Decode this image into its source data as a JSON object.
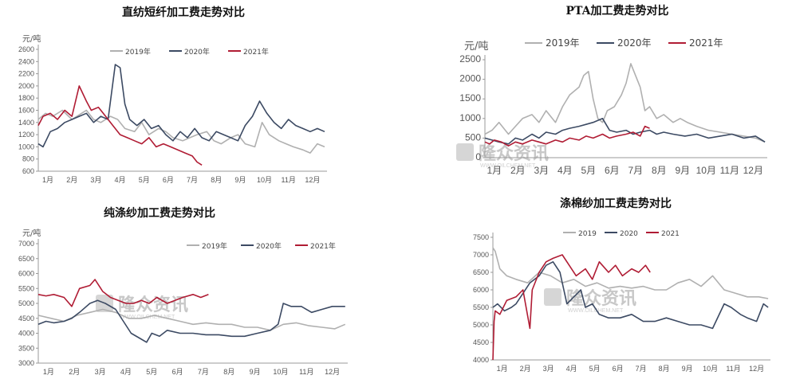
{
  "watermark": {
    "text": "隆众资讯",
    "sub": "WWW.OILCHEM.NET"
  },
  "chart_data": [
    {
      "id": "c1",
      "type": "line",
      "title": "直纺短纤加工费走势对比",
      "ylabel": "元/吨",
      "ylim": [
        600,
        2600
      ],
      "yticks": [
        "600",
        "800",
        "1000",
        "1200",
        "1400",
        "1600",
        "1800",
        "2000",
        "2200",
        "2400",
        "2600"
      ],
      "xticks": [
        "1月",
        "2月",
        "3月",
        "4月",
        "5月",
        "6月",
        "7月",
        "8月",
        "9月",
        "10月",
        "11月",
        "12月"
      ],
      "legend_position": "top",
      "series": [
        {
          "name": "2019年",
          "color": "#b0b0b0",
          "x": [
            1,
            1.3,
            1.6,
            2,
            2.4,
            2.8,
            3,
            3.3,
            3.6,
            4,
            4.3,
            4.6,
            5,
            5.3,
            5.6,
            6,
            6.3,
            6.6,
            7,
            7.3,
            7.6,
            8,
            8.3,
            8.6,
            9,
            9.3,
            9.6,
            10,
            10.3,
            10.6,
            11,
            11.3,
            11.6,
            12,
            12.3,
            12.6,
            12.9
          ],
          "y": [
            1450,
            1550,
            1500,
            1600,
            1450,
            1550,
            1600,
            1450,
            1400,
            1500,
            1450,
            1300,
            1250,
            1400,
            1200,
            1300,
            1250,
            1150,
            1100,
            1150,
            1200,
            1250,
            1100,
            1050,
            1150,
            1200,
            1050,
            1000,
            1400,
            1200,
            1100,
            1050,
            1000,
            950,
            900,
            1050,
            1000
          ]
        },
        {
          "name": "2020年",
          "color": "#3c4a63",
          "x": [
            1,
            1.2,
            1.5,
            1.8,
            2.1,
            2.4,
            2.7,
            3,
            3.3,
            3.6,
            3.9,
            4.2,
            4.4,
            4.6,
            4.8,
            5.1,
            5.4,
            5.7,
            6,
            6.3,
            6.6,
            6.9,
            7.2,
            7.5,
            7.8,
            8.1,
            8.4,
            8.7,
            9,
            9.3,
            9.6,
            9.9,
            10.2,
            10.5,
            10.8,
            11.1,
            11.4,
            11.7,
            12,
            12.3,
            12.6,
            12.9
          ],
          "y": [
            1050,
            1000,
            1250,
            1300,
            1400,
            1450,
            1500,
            1550,
            1400,
            1500,
            1450,
            2350,
            2300,
            1700,
            1450,
            1350,
            1450,
            1300,
            1350,
            1200,
            1100,
            1250,
            1150,
            1300,
            1150,
            1100,
            1250,
            1200,
            1150,
            1100,
            1350,
            1500,
            1750,
            1550,
            1400,
            1300,
            1450,
            1350,
            1300,
            1250,
            1300,
            1250
          ]
        },
        {
          "name": "2021年",
          "color": "#b01c34",
          "x": [
            1,
            1.2,
            1.5,
            1.8,
            2.1,
            2.4,
            2.7,
            3,
            3.2,
            3.5,
            3.8,
            4.1,
            4.4,
            4.7,
            5,
            5.3,
            5.6,
            5.9,
            6.2,
            6.5,
            6.8,
            7.1,
            7.4,
            7.6,
            7.8
          ],
          "y": [
            1350,
            1500,
            1550,
            1450,
            1600,
            1500,
            2000,
            1750,
            1600,
            1650,
            1500,
            1350,
            1200,
            1150,
            1100,
            1050,
            1150,
            1000,
            1050,
            1000,
            950,
            900,
            850,
            750,
            700
          ]
        }
      ]
    },
    {
      "id": "c2",
      "type": "line",
      "title": "PTA加工费走势对比",
      "ylabel": "元/吨",
      "ylim": [
        0,
        2500
      ],
      "yticks": [
        "0",
        "500",
        "1000",
        "1500",
        "2000",
        "2500"
      ],
      "xticks": [
        "1月",
        "2月",
        "3月",
        "4月",
        "5月",
        "6月",
        "7月",
        "8月",
        "9月",
        "10月",
        "11月",
        "12月"
      ],
      "legend_position": "top",
      "series": [
        {
          "name": "2019年",
          "color": "#b0b0b0",
          "x": [
            1,
            1.3,
            1.6,
            2,
            2.3,
            2.6,
            3,
            3.3,
            3.6,
            4,
            4.3,
            4.6,
            5,
            5.2,
            5.4,
            5.6,
            5.8,
            6,
            6.2,
            6.5,
            6.8,
            7,
            7.2,
            7.4,
            7.6,
            7.8,
            8,
            8.3,
            8.6,
            9,
            9.3,
            9.6,
            10,
            10.5,
            11,
            11.5,
            12,
            12.5,
            12.9
          ],
          "y": [
            600,
            700,
            900,
            600,
            800,
            1000,
            1100,
            900,
            1200,
            900,
            1300,
            1600,
            1800,
            2100,
            2200,
            1500,
            1000,
            900,
            1200,
            1300,
            1600,
            1900,
            2400,
            2100,
            1800,
            1200,
            1300,
            1000,
            1100,
            900,
            1000,
            900,
            800,
            700,
            650,
            600,
            550,
            500,
            400
          ]
        },
        {
          "name": "2020年",
          "color": "#3c4a63",
          "x": [
            1,
            1.3,
            1.6,
            2,
            2.3,
            2.6,
            3,
            3.3,
            3.6,
            4,
            4.3,
            4.6,
            5,
            5.3,
            5.6,
            6,
            6.3,
            6.6,
            7,
            7.3,
            7.6,
            8,
            8.3,
            8.6,
            9,
            9.5,
            10,
            10.5,
            11,
            11.5,
            12,
            12.5,
            12.9
          ],
          "y": [
            500,
            450,
            400,
            350,
            500,
            450,
            600,
            500,
            650,
            600,
            700,
            750,
            800,
            850,
            900,
            1000,
            700,
            650,
            700,
            600,
            650,
            700,
            600,
            650,
            600,
            550,
            600,
            500,
            550,
            600,
            500,
            550,
            400
          ]
        },
        {
          "name": "2021年",
          "color": "#b01c34",
          "x": [
            1,
            1.2,
            1.4,
            1.7,
            2,
            2.3,
            2.6,
            3,
            3.3,
            3.6,
            4,
            4.3,
            4.6,
            5,
            5.3,
            5.6,
            6,
            6.3,
            6.6,
            7,
            7.3,
            7.6,
            7.8,
            8
          ],
          "y": [
            400,
            350,
            450,
            400,
            300,
            400,
            350,
            450,
            400,
            350,
            450,
            400,
            500,
            450,
            550,
            500,
            600,
            500,
            550,
            600,
            650,
            550,
            800,
            750
          ]
        }
      ]
    },
    {
      "id": "c3",
      "type": "line",
      "title": "纯涤纱加工费走势对比",
      "ylabel": "元/吨",
      "ylim": [
        3000,
        7000
      ],
      "yticks": [
        "3000",
        "3500",
        "4000",
        "4500",
        "5000",
        "5500",
        "6000",
        "6500",
        "7000"
      ],
      "xticks": [
        "1月",
        "2月",
        "3月",
        "4月",
        "5月",
        "6月",
        "7月",
        "8月",
        "9月",
        "10月",
        "11月",
        "12月"
      ],
      "legend_position": "top",
      "series": [
        {
          "name": "2019年",
          "color": "#b0b0b0",
          "x": [
            1,
            1.5,
            2,
            2.5,
            3,
            3.5,
            4,
            4.5,
            5,
            5.5,
            6,
            6.5,
            7,
            7.5,
            8,
            8.5,
            9,
            9.5,
            10,
            10.5,
            11,
            11.5,
            12,
            12.5,
            12.9
          ],
          "y": [
            4600,
            4500,
            4400,
            4600,
            4700,
            4800,
            4700,
            4500,
            4500,
            4600,
            4500,
            4400,
            4300,
            4350,
            4300,
            4300,
            4200,
            4200,
            4100,
            4300,
            4350,
            4250,
            4200,
            4150,
            4300
          ]
        },
        {
          "name": "2020年",
          "color": "#3c4a63",
          "x": [
            1,
            1.3,
            1.6,
            2,
            2.3,
            2.6,
            3,
            3.3,
            3.6,
            4,
            4.3,
            4.6,
            5,
            5.2,
            5.4,
            5.7,
            6,
            6.5,
            7,
            7.5,
            8,
            8.5,
            9,
            9.5,
            10,
            10.3,
            10.5,
            10.8,
            11.2,
            11.6,
            12,
            12.4,
            12.9
          ],
          "y": [
            4300,
            4400,
            4350,
            4400,
            4500,
            4700,
            5000,
            5100,
            5000,
            4800,
            4400,
            4000,
            3800,
            3700,
            4000,
            3900,
            4100,
            4000,
            4000,
            3950,
            3950,
            3900,
            3900,
            4000,
            4100,
            4300,
            5000,
            4900,
            4900,
            4700,
            4800,
            4900,
            4900
          ]
        },
        {
          "name": "2021年",
          "color": "#b01c34",
          "x": [
            1,
            1.3,
            1.6,
            2,
            2.3,
            2.6,
            3,
            3.2,
            3.5,
            3.8,
            4.1,
            4.4,
            4.7,
            5,
            5.3,
            5.6,
            6,
            6.3,
            6.6,
            7,
            7.3,
            7.6
          ],
          "y": [
            5300,
            5250,
            5300,
            5200,
            4900,
            5500,
            5600,
            5800,
            5400,
            5200,
            5100,
            5000,
            5000,
            5100,
            5000,
            5200,
            5000,
            5100,
            5200,
            5300,
            5200,
            5300
          ]
        }
      ]
    },
    {
      "id": "c4",
      "type": "line",
      "title": "涤棉纱加工费走势对比",
      "ylabel": "",
      "ylim": [
        4000,
        7500
      ],
      "yticks": [
        "4000",
        "4500",
        "5000",
        "5500",
        "6000",
        "6500",
        "7000",
        "7500"
      ],
      "xticks": [
        "1月",
        "2月",
        "3月",
        "4月",
        "5月",
        "6月",
        "7月",
        "8月",
        "9月",
        "10月",
        "11月",
        "12月"
      ],
      "legend_position": "top",
      "series": [
        {
          "name": "2019",
          "color": "#b0b0b0",
          "x": [
            1,
            1.1,
            1.3,
            1.6,
            2,
            2.5,
            3,
            3.5,
            4,
            4.5,
            5,
            5.5,
            6,
            6.5,
            7,
            7.5,
            8,
            8.5,
            9,
            9.5,
            10,
            10.5,
            11,
            11.5,
            12,
            12.5,
            12.9
          ],
          "y": [
            7200,
            7100,
            6600,
            6400,
            6300,
            6200,
            6500,
            6400,
            6200,
            6300,
            6100,
            6200,
            6050,
            6100,
            6050,
            6100,
            6000,
            6000,
            6200,
            6300,
            6100,
            6400,
            6000,
            5900,
            5800,
            5800,
            5750
          ]
        },
        {
          "name": "2020",
          "color": "#3c4a63",
          "x": [
            1,
            1.2,
            1.5,
            1.8,
            2,
            2.3,
            2.6,
            3,
            3.3,
            3.6,
            3.9,
            4.2,
            4.5,
            4.8,
            5,
            5.3,
            5.6,
            6,
            6.5,
            7,
            7.5,
            8,
            8.5,
            9,
            9.5,
            10,
            10.5,
            11,
            11.3,
            11.7,
            12,
            12.4,
            12.7,
            12.9
          ],
          "y": [
            5500,
            5600,
            5400,
            5500,
            5600,
            5900,
            6200,
            6400,
            6700,
            6800,
            6500,
            5600,
            5800,
            6000,
            5500,
            5600,
            5300,
            5200,
            5200,
            5300,
            5100,
            5100,
            5200,
            5100,
            5000,
            5000,
            4900,
            5600,
            5500,
            5300,
            5200,
            5100,
            5600,
            5500
          ]
        },
        {
          "name": "2021",
          "color": "#b01c34",
          "x": [
            1,
            1.05,
            1.1,
            1.3,
            1.6,
            2,
            2.3,
            2.6,
            2.7,
            3,
            3.3,
            3.6,
            4,
            4.3,
            4.6,
            5,
            5.3,
            5.6,
            6,
            6.3,
            6.6,
            7,
            7.3,
            7.6,
            7.8
          ],
          "y": [
            4000,
            5100,
            5400,
            5300,
            5700,
            5800,
            6000,
            4900,
            6000,
            6500,
            6800,
            6900,
            7000,
            6700,
            6400,
            6600,
            6300,
            6800,
            6500,
            6700,
            6400,
            6600,
            6500,
            6700,
            6500
          ]
        }
      ]
    }
  ]
}
